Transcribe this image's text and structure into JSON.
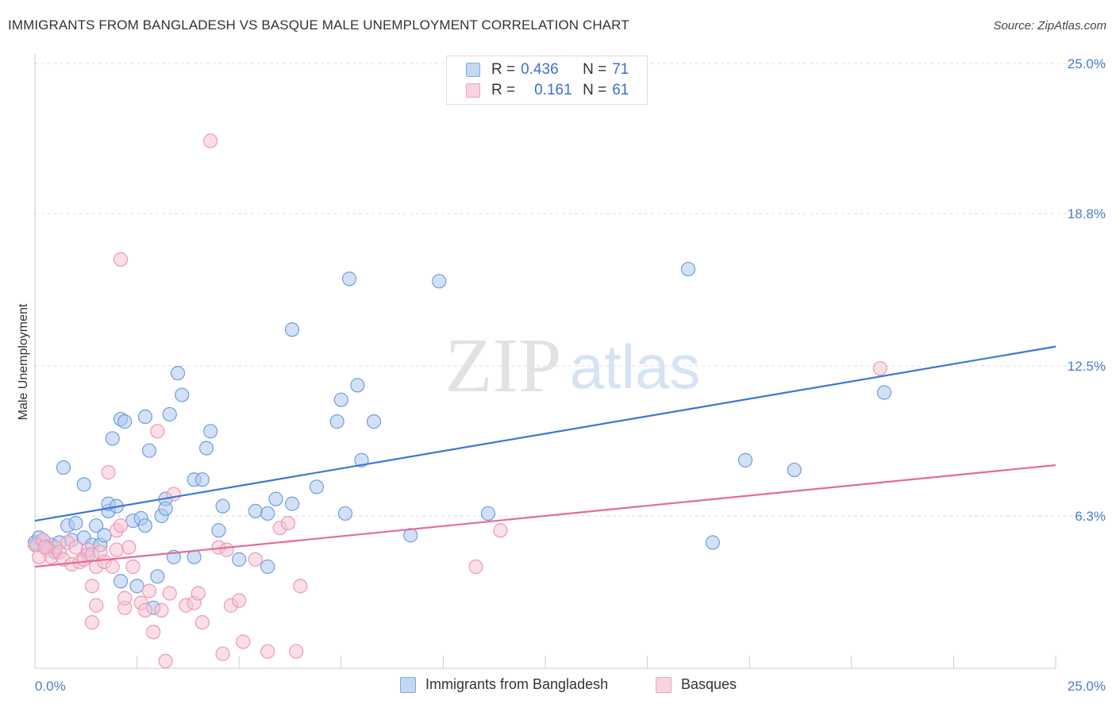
{
  "header": {
    "title": "IMMIGRANTS FROM BANGLADESH VS BASQUE MALE UNEMPLOYMENT CORRELATION CHART",
    "source": "Source: ZipAtlas.com"
  },
  "watermark": {
    "zip": "ZIP",
    "atlas": "atlas"
  },
  "legend": {
    "r_label": "R =",
    "n_label": "N =",
    "rows": [
      {
        "r": "0.436",
        "n": "71",
        "color": "#7eaae8"
      },
      {
        "r": "0.161",
        "n": "61",
        "color": "#f0a3bd"
      }
    ]
  },
  "colors": {
    "blue_fill": "#aec9ef",
    "blue_stroke": "#6f9de0",
    "blue_line": "#3b78d6",
    "pink_fill": "#f6c4d4",
    "pink_stroke": "#ec98b5",
    "pink_line": "#e56b96",
    "tick_text": "#4a7cc9",
    "grid": "#dedede"
  },
  "chart_data": {
    "type": "scatter",
    "title": "IMMIGRANTS FROM BANGLADESH VS BASQUE MALE UNEMPLOYMENT CORRELATION CHART",
    "xlabel": "",
    "ylabel": "Male Unemployment",
    "xlim": [
      0,
      25
    ],
    "ylim": [
      0,
      25
    ],
    "x_tick_labels": [
      "0.0%",
      "25.0%"
    ],
    "y_ticks": [
      {
        "value": 6.3,
        "label": "6.3%"
      },
      {
        "value": 12.5,
        "label": "12.5%"
      },
      {
        "value": 18.8,
        "label": "18.8%"
      },
      {
        "value": 25.0,
        "label": "25.0%"
      }
    ],
    "grid": true,
    "legend_position": "top-center",
    "series": [
      {
        "name": "Immigrants from Bangladesh",
        "r": 0.436,
        "n": 71,
        "trend": {
          "x": [
            0,
            25
          ],
          "y": [
            6.1,
            13.3
          ]
        },
        "points": [
          [
            0.0,
            5.2
          ],
          [
            0.1,
            5.4
          ],
          [
            0.2,
            5.3
          ],
          [
            0.3,
            5.0
          ],
          [
            0.4,
            5.1
          ],
          [
            0.5,
            4.8
          ],
          [
            0.6,
            5.2
          ],
          [
            0.7,
            8.3
          ],
          [
            0.8,
            5.9
          ],
          [
            0.9,
            5.3
          ],
          [
            1.0,
            6.0
          ],
          [
            1.2,
            5.4
          ],
          [
            1.2,
            7.6
          ],
          [
            1.3,
            4.7
          ],
          [
            1.4,
            5.1
          ],
          [
            1.5,
            5.9
          ],
          [
            1.6,
            5.1
          ],
          [
            1.7,
            5.5
          ],
          [
            1.8,
            6.5
          ],
          [
            1.8,
            6.8
          ],
          [
            1.9,
            9.5
          ],
          [
            2.0,
            6.7
          ],
          [
            2.1,
            3.6
          ],
          [
            2.1,
            10.3
          ],
          [
            2.2,
            10.2
          ],
          [
            2.4,
            6.1
          ],
          [
            2.5,
            3.4
          ],
          [
            2.6,
            6.2
          ],
          [
            2.7,
            5.9
          ],
          [
            2.7,
            10.4
          ],
          [
            2.8,
            9.0
          ],
          [
            2.9,
            2.5
          ],
          [
            3.0,
            3.8
          ],
          [
            3.1,
            6.3
          ],
          [
            3.2,
            7.0
          ],
          [
            3.2,
            6.6
          ],
          [
            3.3,
            10.5
          ],
          [
            3.4,
            4.6
          ],
          [
            3.5,
            12.2
          ],
          [
            3.6,
            11.3
          ],
          [
            3.9,
            4.6
          ],
          [
            3.9,
            7.8
          ],
          [
            4.1,
            7.8
          ],
          [
            4.2,
            9.1
          ],
          [
            4.3,
            9.8
          ],
          [
            4.5,
            5.7
          ],
          [
            4.6,
            6.7
          ],
          [
            5.0,
            4.5
          ],
          [
            5.4,
            6.5
          ],
          [
            5.7,
            4.2
          ],
          [
            5.7,
            6.4
          ],
          [
            5.9,
            7.0
          ],
          [
            6.3,
            6.8
          ],
          [
            6.3,
            14.0
          ],
          [
            6.9,
            7.5
          ],
          [
            7.4,
            10.2
          ],
          [
            7.5,
            11.1
          ],
          [
            7.6,
            6.4
          ],
          [
            7.7,
            16.1
          ],
          [
            7.9,
            11.7
          ],
          [
            8.0,
            8.6
          ],
          [
            8.3,
            10.2
          ],
          [
            9.2,
            5.5
          ],
          [
            9.9,
            16.0
          ],
          [
            11.1,
            6.4
          ],
          [
            16.0,
            16.5
          ],
          [
            16.6,
            5.2
          ],
          [
            17.4,
            8.6
          ],
          [
            18.6,
            8.2
          ],
          [
            20.8,
            11.4
          ],
          [
            0.05,
            5.1
          ]
        ]
      },
      {
        "name": "Basques",
        "r": 0.161,
        "n": 61,
        "trend": {
          "x": [
            0,
            25
          ],
          "y": [
            4.2,
            8.4
          ]
        },
        "points": [
          [
            0.0,
            5.1
          ],
          [
            0.2,
            5.3
          ],
          [
            0.3,
            4.9
          ],
          [
            0.4,
            4.6
          ],
          [
            0.5,
            5.0
          ],
          [
            0.6,
            4.8
          ],
          [
            0.7,
            4.5
          ],
          [
            0.8,
            5.2
          ],
          [
            0.9,
            4.3
          ],
          [
            1.0,
            5.0
          ],
          [
            1.1,
            4.4
          ],
          [
            1.2,
            4.5
          ],
          [
            1.3,
            4.9
          ],
          [
            1.4,
            4.7
          ],
          [
            1.4,
            3.4
          ],
          [
            1.4,
            1.9
          ],
          [
            1.5,
            4.2
          ],
          [
            1.5,
            2.6
          ],
          [
            1.6,
            4.8
          ],
          [
            1.7,
            4.4
          ],
          [
            1.8,
            8.1
          ],
          [
            1.9,
            4.2
          ],
          [
            2.0,
            5.7
          ],
          [
            2.0,
            4.9
          ],
          [
            2.1,
            5.9
          ],
          [
            2.1,
            16.9
          ],
          [
            2.2,
            2.5
          ],
          [
            2.2,
            2.9
          ],
          [
            2.3,
            5.0
          ],
          [
            2.4,
            4.2
          ],
          [
            2.6,
            2.7
          ],
          [
            2.7,
            2.4
          ],
          [
            2.8,
            3.2
          ],
          [
            2.9,
            1.5
          ],
          [
            3.0,
            9.8
          ],
          [
            3.1,
            2.4
          ],
          [
            3.2,
            0.3
          ],
          [
            3.3,
            3.1
          ],
          [
            3.4,
            7.2
          ],
          [
            3.7,
            2.6
          ],
          [
            3.9,
            2.7
          ],
          [
            4.0,
            3.1
          ],
          [
            4.1,
            1.9
          ],
          [
            4.3,
            21.8
          ],
          [
            4.5,
            5.0
          ],
          [
            4.6,
            0.6
          ],
          [
            4.7,
            4.9
          ],
          [
            4.8,
            2.6
          ],
          [
            5.0,
            2.8
          ],
          [
            5.1,
            1.1
          ],
          [
            5.4,
            4.5
          ],
          [
            5.7,
            0.7
          ],
          [
            6.0,
            5.8
          ],
          [
            6.2,
            6.0
          ],
          [
            6.4,
            0.7
          ],
          [
            6.5,
            3.4
          ],
          [
            10.8,
            4.2
          ],
          [
            11.4,
            5.7
          ],
          [
            20.7,
            12.4
          ],
          [
            0.1,
            4.6
          ],
          [
            0.25,
            5.0
          ]
        ]
      }
    ]
  }
}
